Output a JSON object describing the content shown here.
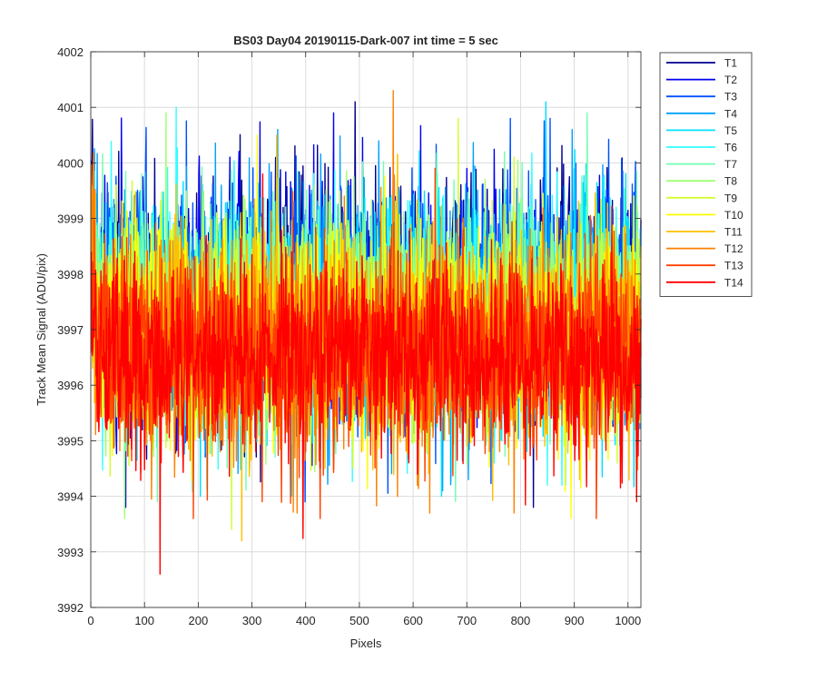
{
  "chart_data": {
    "type": "line",
    "title": "BS03 Day04 20190115-Dark-007 int time = 5 sec",
    "xlabel": "Pixels",
    "ylabel": "Track Mean Signal (ADU/pix)",
    "xlim": [
      0,
      1024
    ],
    "ylim": [
      3992,
      4002
    ],
    "xticks": [
      0,
      100,
      200,
      300,
      400,
      500,
      600,
      700,
      800,
      900,
      1000
    ],
    "yticks": [
      3992,
      3993,
      3994,
      3995,
      3996,
      3997,
      3998,
      3999,
      4000,
      4001,
      4002
    ],
    "grid": true,
    "legend_position": "outside-top-right",
    "colormap": "jet",
    "series": [
      {
        "name": "T1",
        "color": "#00008F",
        "center": 3997.6,
        "spread": 1.25,
        "max": 4001.1,
        "min": 3993.8
      },
      {
        "name": "T2",
        "color": "#0000EF",
        "center": 3997.5,
        "spread": 1.25,
        "max": 4000.9,
        "min": 3993.8
      },
      {
        "name": "T3",
        "color": "#0050FF",
        "center": 3997.5,
        "spread": 1.25,
        "max": 4000.8,
        "min": 3993.9
      },
      {
        "name": "T4",
        "color": "#00A0FF",
        "center": 3997.4,
        "spread": 1.2,
        "max": 4000.6,
        "min": 3994.1
      },
      {
        "name": "T5",
        "color": "#00E0FF",
        "center": 3997.4,
        "spread": 1.2,
        "max": 4001.1,
        "min": 3994.0
      },
      {
        "name": "T6",
        "color": "#30FFFF",
        "center": 3997.3,
        "spread": 1.2,
        "max": 4001.0,
        "min": 3994.2
      },
      {
        "name": "T7",
        "color": "#70FFB0",
        "center": 3997.3,
        "spread": 1.2,
        "max": 4000.9,
        "min": 3993.9
      },
      {
        "name": "T8",
        "color": "#A0FF70",
        "center": 3997.1,
        "spread": 1.15,
        "max": 4000.9,
        "min": 3993.6
      },
      {
        "name": "T9",
        "color": "#D0FF30",
        "center": 3997.0,
        "spread": 1.15,
        "max": 4000.8,
        "min": 3993.4
      },
      {
        "name": "T10",
        "color": "#FFFF00",
        "center": 3996.9,
        "spread": 1.1,
        "max": 4000.5,
        "min": 3993.6
      },
      {
        "name": "T11",
        "color": "#FFC000",
        "center": 3996.8,
        "spread": 1.1,
        "max": 4000.5,
        "min": 3993.2
      },
      {
        "name": "T12",
        "color": "#FF8000",
        "center": 3996.7,
        "spread": 1.1,
        "max": 4001.3,
        "min": 3993.7
      },
      {
        "name": "T13",
        "color": "#FF4000",
        "center": 3996.6,
        "spread": 1.05,
        "max": 3999.9,
        "min": 3993.6
      },
      {
        "name": "T14",
        "color": "#FF0000",
        "center": 3996.5,
        "spread": 1.0,
        "max": 3999.8,
        "min": 3992.6
      }
    ]
  }
}
